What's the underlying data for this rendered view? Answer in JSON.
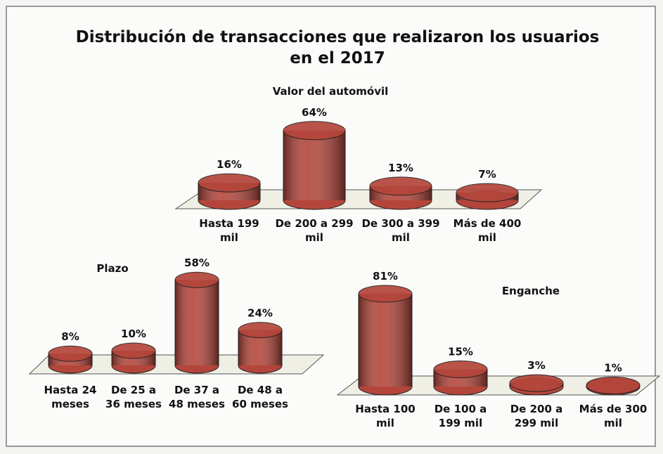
{
  "title": "Distribución de transacciones  que realizaron los usuarios en el 2017",
  "chart_data": [
    {
      "type": "bar",
      "title": "Valor del automóvil",
      "color": "#b4453a",
      "categories": [
        "Hasta 199 mil",
        "De 200 a 299 mil",
        "De 300 a 399 mil",
        "Más de 400 mil"
      ],
      "values": [
        16,
        64,
        13,
        7
      ],
      "value_labels": [
        "16%",
        "64%",
        "13%",
        "7%"
      ]
    },
    {
      "type": "bar",
      "title": "Plazo",
      "color": "#b4453a",
      "categories": [
        "Hasta 24 meses",
        "De 25 a 36 meses",
        "De 37 a 48 meses",
        "De 48 a 60 meses"
      ],
      "values": [
        8,
        10,
        58,
        24
      ],
      "value_labels": [
        "8%",
        "10%",
        "58%",
        "24%"
      ]
    },
    {
      "type": "bar",
      "title": "Enganche",
      "color": "#b4453a",
      "categories": [
        "Hasta 100 mil",
        "De 100 a 199 mil",
        "De 200 a 299 mil",
        "Más de 300 mil"
      ],
      "values": [
        81,
        15,
        3,
        1
      ],
      "value_labels": [
        "81%",
        "15%",
        "3%",
        "1%"
      ]
    }
  ]
}
